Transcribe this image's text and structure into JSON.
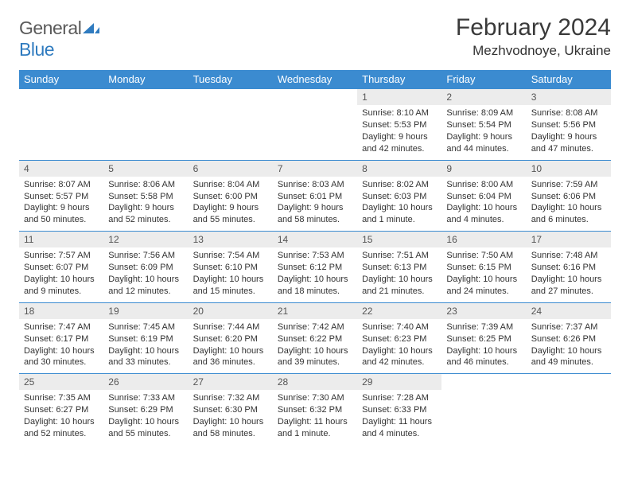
{
  "logo": {
    "word1": "General",
    "word2": "Blue"
  },
  "title": "February 2024",
  "location": "Mezhvodnoye, Ukraine",
  "colors": {
    "header_bg": "#3b8bd0",
    "header_fg": "#ffffff",
    "daynum_bg": "#ececec",
    "border": "#3b8bd0",
    "text": "#333333",
    "logo_gray": "#5a5a5a",
    "logo_blue": "#2f7bbf"
  },
  "typography": {
    "title_fontsize": 30,
    "location_fontsize": 17,
    "header_fontsize": 13,
    "cell_fontsize": 11,
    "daynum_fontsize": 12
  },
  "weekdays": [
    "Sunday",
    "Monday",
    "Tuesday",
    "Wednesday",
    "Thursday",
    "Friday",
    "Saturday"
  ],
  "weeks": [
    [
      null,
      null,
      null,
      null,
      {
        "n": "1",
        "sunrise": "Sunrise: 8:10 AM",
        "sunset": "Sunset: 5:53 PM",
        "daylight": "Daylight: 9 hours and 42 minutes."
      },
      {
        "n": "2",
        "sunrise": "Sunrise: 8:09 AM",
        "sunset": "Sunset: 5:54 PM",
        "daylight": "Daylight: 9 hours and 44 minutes."
      },
      {
        "n": "3",
        "sunrise": "Sunrise: 8:08 AM",
        "sunset": "Sunset: 5:56 PM",
        "daylight": "Daylight: 9 hours and 47 minutes."
      }
    ],
    [
      {
        "n": "4",
        "sunrise": "Sunrise: 8:07 AM",
        "sunset": "Sunset: 5:57 PM",
        "daylight": "Daylight: 9 hours and 50 minutes."
      },
      {
        "n": "5",
        "sunrise": "Sunrise: 8:06 AM",
        "sunset": "Sunset: 5:58 PM",
        "daylight": "Daylight: 9 hours and 52 minutes."
      },
      {
        "n": "6",
        "sunrise": "Sunrise: 8:04 AM",
        "sunset": "Sunset: 6:00 PM",
        "daylight": "Daylight: 9 hours and 55 minutes."
      },
      {
        "n": "7",
        "sunrise": "Sunrise: 8:03 AM",
        "sunset": "Sunset: 6:01 PM",
        "daylight": "Daylight: 9 hours and 58 minutes."
      },
      {
        "n": "8",
        "sunrise": "Sunrise: 8:02 AM",
        "sunset": "Sunset: 6:03 PM",
        "daylight": "Daylight: 10 hours and 1 minute."
      },
      {
        "n": "9",
        "sunrise": "Sunrise: 8:00 AM",
        "sunset": "Sunset: 6:04 PM",
        "daylight": "Daylight: 10 hours and 4 minutes."
      },
      {
        "n": "10",
        "sunrise": "Sunrise: 7:59 AM",
        "sunset": "Sunset: 6:06 PM",
        "daylight": "Daylight: 10 hours and 6 minutes."
      }
    ],
    [
      {
        "n": "11",
        "sunrise": "Sunrise: 7:57 AM",
        "sunset": "Sunset: 6:07 PM",
        "daylight": "Daylight: 10 hours and 9 minutes."
      },
      {
        "n": "12",
        "sunrise": "Sunrise: 7:56 AM",
        "sunset": "Sunset: 6:09 PM",
        "daylight": "Daylight: 10 hours and 12 minutes."
      },
      {
        "n": "13",
        "sunrise": "Sunrise: 7:54 AM",
        "sunset": "Sunset: 6:10 PM",
        "daylight": "Daylight: 10 hours and 15 minutes."
      },
      {
        "n": "14",
        "sunrise": "Sunrise: 7:53 AM",
        "sunset": "Sunset: 6:12 PM",
        "daylight": "Daylight: 10 hours and 18 minutes."
      },
      {
        "n": "15",
        "sunrise": "Sunrise: 7:51 AM",
        "sunset": "Sunset: 6:13 PM",
        "daylight": "Daylight: 10 hours and 21 minutes."
      },
      {
        "n": "16",
        "sunrise": "Sunrise: 7:50 AM",
        "sunset": "Sunset: 6:15 PM",
        "daylight": "Daylight: 10 hours and 24 minutes."
      },
      {
        "n": "17",
        "sunrise": "Sunrise: 7:48 AM",
        "sunset": "Sunset: 6:16 PM",
        "daylight": "Daylight: 10 hours and 27 minutes."
      }
    ],
    [
      {
        "n": "18",
        "sunrise": "Sunrise: 7:47 AM",
        "sunset": "Sunset: 6:17 PM",
        "daylight": "Daylight: 10 hours and 30 minutes."
      },
      {
        "n": "19",
        "sunrise": "Sunrise: 7:45 AM",
        "sunset": "Sunset: 6:19 PM",
        "daylight": "Daylight: 10 hours and 33 minutes."
      },
      {
        "n": "20",
        "sunrise": "Sunrise: 7:44 AM",
        "sunset": "Sunset: 6:20 PM",
        "daylight": "Daylight: 10 hours and 36 minutes."
      },
      {
        "n": "21",
        "sunrise": "Sunrise: 7:42 AM",
        "sunset": "Sunset: 6:22 PM",
        "daylight": "Daylight: 10 hours and 39 minutes."
      },
      {
        "n": "22",
        "sunrise": "Sunrise: 7:40 AM",
        "sunset": "Sunset: 6:23 PM",
        "daylight": "Daylight: 10 hours and 42 minutes."
      },
      {
        "n": "23",
        "sunrise": "Sunrise: 7:39 AM",
        "sunset": "Sunset: 6:25 PM",
        "daylight": "Daylight: 10 hours and 46 minutes."
      },
      {
        "n": "24",
        "sunrise": "Sunrise: 7:37 AM",
        "sunset": "Sunset: 6:26 PM",
        "daylight": "Daylight: 10 hours and 49 minutes."
      }
    ],
    [
      {
        "n": "25",
        "sunrise": "Sunrise: 7:35 AM",
        "sunset": "Sunset: 6:27 PM",
        "daylight": "Daylight: 10 hours and 52 minutes."
      },
      {
        "n": "26",
        "sunrise": "Sunrise: 7:33 AM",
        "sunset": "Sunset: 6:29 PM",
        "daylight": "Daylight: 10 hours and 55 minutes."
      },
      {
        "n": "27",
        "sunrise": "Sunrise: 7:32 AM",
        "sunset": "Sunset: 6:30 PM",
        "daylight": "Daylight: 10 hours and 58 minutes."
      },
      {
        "n": "28",
        "sunrise": "Sunrise: 7:30 AM",
        "sunset": "Sunset: 6:32 PM",
        "daylight": "Daylight: 11 hours and 1 minute."
      },
      {
        "n": "29",
        "sunrise": "Sunrise: 7:28 AM",
        "sunset": "Sunset: 6:33 PM",
        "daylight": "Daylight: 11 hours and 4 minutes."
      },
      null,
      null
    ]
  ]
}
